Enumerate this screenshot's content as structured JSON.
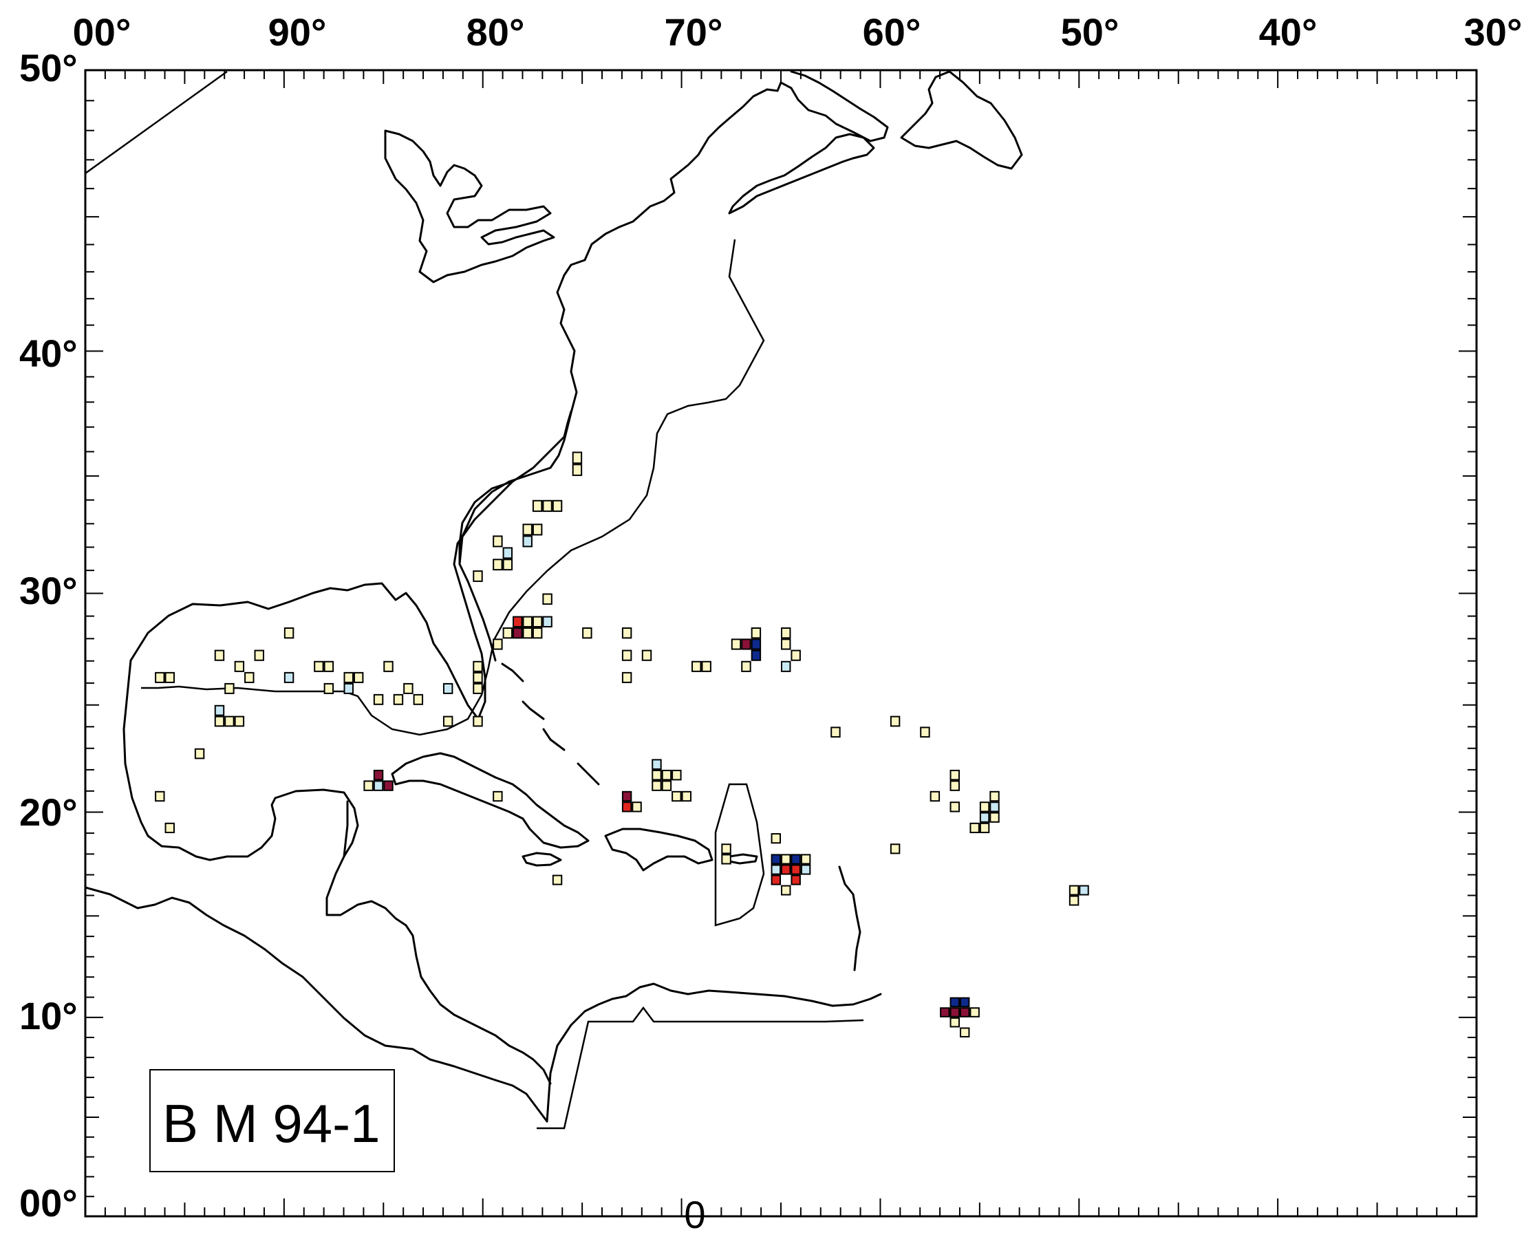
{
  "map": {
    "legend_label": "B M 94-1",
    "zero_marker": "0",
    "lon_labels": [
      "00°",
      "90°",
      "80°",
      "70°",
      "60°",
      "50°",
      "40°",
      "30°"
    ],
    "lat_labels": [
      "50°",
      "40°",
      "30°",
      "20°",
      "10°",
      "00°"
    ],
    "extent": {
      "lon_min": -100,
      "lon_max": -30,
      "lat_min": 0,
      "lat_max": 50
    },
    "colors": {
      "pale_yellow": "#fbf6c3",
      "light_blue": "#c8e8f4",
      "red": "#e0251f",
      "maroon": "#8a1238",
      "navy": "#0d2a8c"
    },
    "cells": [
      {
        "lon": -75.5,
        "lat": 35.5,
        "c": "pale_yellow"
      },
      {
        "lon": -75.5,
        "lat": 35.0,
        "c": "pale_yellow"
      },
      {
        "lon": -77.5,
        "lat": 33.5,
        "c": "pale_yellow"
      },
      {
        "lon": -77.0,
        "lat": 33.5,
        "c": "pale_yellow"
      },
      {
        "lon": -76.5,
        "lat": 33.5,
        "c": "pale_yellow"
      },
      {
        "lon": -78.0,
        "lat": 32.5,
        "c": "pale_yellow"
      },
      {
        "lon": -77.5,
        "lat": 32.5,
        "c": "pale_yellow"
      },
      {
        "lon": -78.0,
        "lat": 32.0,
        "c": "light_blue"
      },
      {
        "lon": -79.5,
        "lat": 32.0,
        "c": "pale_yellow"
      },
      {
        "lon": -79.0,
        "lat": 31.5,
        "c": "light_blue"
      },
      {
        "lon": -79.5,
        "lat": 31.0,
        "c": "pale_yellow"
      },
      {
        "lon": -79.0,
        "lat": 31.0,
        "c": "pale_yellow"
      },
      {
        "lon": -80.5,
        "lat": 30.5,
        "c": "pale_yellow"
      },
      {
        "lon": -77.0,
        "lat": 29.5,
        "c": "pale_yellow"
      },
      {
        "lon": -78.5,
        "lat": 28.5,
        "c": "red"
      },
      {
        "lon": -78.0,
        "lat": 28.5,
        "c": "pale_yellow"
      },
      {
        "lon": -77.5,
        "lat": 28.5,
        "c": "pale_yellow"
      },
      {
        "lon": -77.0,
        "lat": 28.5,
        "c": "light_blue"
      },
      {
        "lon": -78.5,
        "lat": 28.0,
        "c": "maroon"
      },
      {
        "lon": -78.0,
        "lat": 28.0,
        "c": "pale_yellow"
      },
      {
        "lon": -77.5,
        "lat": 28.0,
        "c": "pale_yellow"
      },
      {
        "lon": -79.0,
        "lat": 28.0,
        "c": "pale_yellow"
      },
      {
        "lon": -79.5,
        "lat": 27.5,
        "c": "pale_yellow"
      },
      {
        "lon": -75.0,
        "lat": 28.0,
        "c": "pale_yellow"
      },
      {
        "lon": -73.0,
        "lat": 28.0,
        "c": "pale_yellow"
      },
      {
        "lon": -73.0,
        "lat": 27.0,
        "c": "pale_yellow"
      },
      {
        "lon": -72.0,
        "lat": 27.0,
        "c": "pale_yellow"
      },
      {
        "lon": -73.0,
        "lat": 26.0,
        "c": "pale_yellow"
      },
      {
        "lon": -69.5,
        "lat": 26.5,
        "c": "pale_yellow"
      },
      {
        "lon": -69.0,
        "lat": 26.5,
        "c": "pale_yellow"
      },
      {
        "lon": -80.5,
        "lat": 26.5,
        "c": "pale_yellow"
      },
      {
        "lon": -80.5,
        "lat": 26.0,
        "c": "pale_yellow"
      },
      {
        "lon": -80.5,
        "lat": 25.5,
        "c": "pale_yellow"
      },
      {
        "lon": -80.5,
        "lat": 24.0,
        "c": "pale_yellow"
      },
      {
        "lon": -82.0,
        "lat": 24.0,
        "c": "pale_yellow"
      },
      {
        "lon": -66.5,
        "lat": 28.0,
        "c": "pale_yellow"
      },
      {
        "lon": -66.5,
        "lat": 27.5,
        "c": "navy"
      },
      {
        "lon": -67.0,
        "lat": 27.5,
        "c": "maroon"
      },
      {
        "lon": -67.5,
        "lat": 27.5,
        "c": "pale_yellow"
      },
      {
        "lon": -66.5,
        "lat": 27.0,
        "c": "navy"
      },
      {
        "lon": -67.0,
        "lat": 26.5,
        "c": "pale_yellow"
      },
      {
        "lon": -65.0,
        "lat": 28.0,
        "c": "pale_yellow"
      },
      {
        "lon": -65.0,
        "lat": 27.5,
        "c": "pale_yellow"
      },
      {
        "lon": -64.5,
        "lat": 27.0,
        "c": "pale_yellow"
      },
      {
        "lon": -65.0,
        "lat": 26.5,
        "c": "light_blue"
      },
      {
        "lon": -96.5,
        "lat": 26.0,
        "c": "pale_yellow"
      },
      {
        "lon": -96.0,
        "lat": 26.0,
        "c": "pale_yellow"
      },
      {
        "lon": -93.5,
        "lat": 27.0,
        "c": "pale_yellow"
      },
      {
        "lon": -92.5,
        "lat": 26.5,
        "c": "pale_yellow"
      },
      {
        "lon": -92.0,
        "lat": 26.0,
        "c": "pale_yellow"
      },
      {
        "lon": -91.5,
        "lat": 27.0,
        "c": "pale_yellow"
      },
      {
        "lon": -93.0,
        "lat": 25.5,
        "c": "pale_yellow"
      },
      {
        "lon": -90.0,
        "lat": 28.0,
        "c": "pale_yellow"
      },
      {
        "lon": -90.0,
        "lat": 26.0,
        "c": "light_blue"
      },
      {
        "lon": -88.5,
        "lat": 26.5,
        "c": "pale_yellow"
      },
      {
        "lon": -88.0,
        "lat": 26.5,
        "c": "pale_yellow"
      },
      {
        "lon": -88.0,
        "lat": 25.5,
        "c": "pale_yellow"
      },
      {
        "lon": -87.0,
        "lat": 26.0,
        "c": "pale_yellow"
      },
      {
        "lon": -86.5,
        "lat": 26.0,
        "c": "pale_yellow"
      },
      {
        "lon": -87.0,
        "lat": 25.5,
        "c": "light_blue"
      },
      {
        "lon": -85.0,
        "lat": 26.5,
        "c": "pale_yellow"
      },
      {
        "lon": -84.0,
        "lat": 25.5,
        "c": "pale_yellow"
      },
      {
        "lon": -84.5,
        "lat": 25.0,
        "c": "pale_yellow"
      },
      {
        "lon": -83.5,
        "lat": 25.0,
        "c": "pale_yellow"
      },
      {
        "lon": -85.5,
        "lat": 25.0,
        "c": "pale_yellow"
      },
      {
        "lon": -82.0,
        "lat": 25.5,
        "c": "light_blue"
      },
      {
        "lon": -93.5,
        "lat": 24.5,
        "c": "light_blue"
      },
      {
        "lon": -93.5,
        "lat": 24.0,
        "c": "pale_yellow"
      },
      {
        "lon": -93.0,
        "lat": 24.0,
        "c": "pale_yellow"
      },
      {
        "lon": -92.5,
        "lat": 24.0,
        "c": "pale_yellow"
      },
      {
        "lon": -94.5,
        "lat": 22.5,
        "c": "pale_yellow"
      },
      {
        "lon": -96.5,
        "lat": 20.5,
        "c": "pale_yellow"
      },
      {
        "lon": -96.0,
        "lat": 19.0,
        "c": "pale_yellow"
      },
      {
        "lon": -85.5,
        "lat": 21.5,
        "c": "maroon"
      },
      {
        "lon": -85.5,
        "lat": 21.0,
        "c": "light_blue"
      },
      {
        "lon": -85.0,
        "lat": 21.0,
        "c": "maroon"
      },
      {
        "lon": -86.0,
        "lat": 21.0,
        "c": "pale_yellow"
      },
      {
        "lon": -79.5,
        "lat": 20.5,
        "c": "pale_yellow"
      },
      {
        "lon": -76.5,
        "lat": 16.5,
        "c": "pale_yellow"
      },
      {
        "lon": -73.0,
        "lat": 20.5,
        "c": "maroon"
      },
      {
        "lon": -73.0,
        "lat": 20.0,
        "c": "red"
      },
      {
        "lon": -72.5,
        "lat": 20.0,
        "c": "pale_yellow"
      },
      {
        "lon": -71.5,
        "lat": 22.0,
        "c": "light_blue"
      },
      {
        "lon": -71.5,
        "lat": 21.5,
        "c": "pale_yellow"
      },
      {
        "lon": -71.0,
        "lat": 21.5,
        "c": "pale_yellow"
      },
      {
        "lon": -70.5,
        "lat": 21.5,
        "c": "pale_yellow"
      },
      {
        "lon": -71.5,
        "lat": 21.0,
        "c": "pale_yellow"
      },
      {
        "lon": -71.0,
        "lat": 21.0,
        "c": "pale_yellow"
      },
      {
        "lon": -70.5,
        "lat": 20.5,
        "c": "pale_yellow"
      },
      {
        "lon": -70.0,
        "lat": 20.5,
        "c": "pale_yellow"
      },
      {
        "lon": -68.0,
        "lat": 18.0,
        "c": "pale_yellow"
      },
      {
        "lon": -68.0,
        "lat": 17.5,
        "c": "pale_yellow"
      },
      {
        "lon": -65.5,
        "lat": 18.5,
        "c": "pale_yellow"
      },
      {
        "lon": -65.5,
        "lat": 17.5,
        "c": "navy"
      },
      {
        "lon": -65.0,
        "lat": 17.5,
        "c": "pale_yellow"
      },
      {
        "lon": -64.5,
        "lat": 17.5,
        "c": "navy"
      },
      {
        "lon": -64.0,
        "lat": 17.5,
        "c": "pale_yellow"
      },
      {
        "lon": -65.5,
        "lat": 17.0,
        "c": "light_blue"
      },
      {
        "lon": -65.0,
        "lat": 17.0,
        "c": "red"
      },
      {
        "lon": -64.5,
        "lat": 17.0,
        "c": "red"
      },
      {
        "lon": -64.0,
        "lat": 17.0,
        "c": "light_blue"
      },
      {
        "lon": -65.5,
        "lat": 16.5,
        "c": "red"
      },
      {
        "lon": -64.5,
        "lat": 16.5,
        "c": "red"
      },
      {
        "lon": -65.0,
        "lat": 16.0,
        "c": "pale_yellow"
      },
      {
        "lon": -62.5,
        "lat": 23.5,
        "c": "pale_yellow"
      },
      {
        "lon": -59.5,
        "lat": 24.0,
        "c": "pale_yellow"
      },
      {
        "lon": -58.0,
        "lat": 23.5,
        "c": "pale_yellow"
      },
      {
        "lon": -59.5,
        "lat": 18.0,
        "c": "pale_yellow"
      },
      {
        "lon": -56.5,
        "lat": 21.5,
        "c": "pale_yellow"
      },
      {
        "lon": -56.5,
        "lat": 21.0,
        "c": "pale_yellow"
      },
      {
        "lon": -57.5,
        "lat": 20.5,
        "c": "pale_yellow"
      },
      {
        "lon": -56.5,
        "lat": 20.0,
        "c": "pale_yellow"
      },
      {
        "lon": -55.0,
        "lat": 20.0,
        "c": "pale_yellow"
      },
      {
        "lon": -54.5,
        "lat": 20.5,
        "c": "pale_yellow"
      },
      {
        "lon": -54.5,
        "lat": 20.0,
        "c": "light_blue"
      },
      {
        "lon": -54.5,
        "lat": 19.5,
        "c": "pale_yellow"
      },
      {
        "lon": -55.0,
        "lat": 19.5,
        "c": "light_blue"
      },
      {
        "lon": -55.0,
        "lat": 19.0,
        "c": "pale_yellow"
      },
      {
        "lon": -55.5,
        "lat": 19.0,
        "c": "pale_yellow"
      },
      {
        "lon": -50.5,
        "lat": 16.0,
        "c": "pale_yellow"
      },
      {
        "lon": -50.0,
        "lat": 16.0,
        "c": "light_blue"
      },
      {
        "lon": -50.5,
        "lat": 15.5,
        "c": "pale_yellow"
      },
      {
        "lon": -56.5,
        "lat": 10.5,
        "c": "navy"
      },
      {
        "lon": -56.0,
        "lat": 10.5,
        "c": "navy"
      },
      {
        "lon": -57.0,
        "lat": 10.0,
        "c": "maroon"
      },
      {
        "lon": -56.5,
        "lat": 10.0,
        "c": "maroon"
      },
      {
        "lon": -56.0,
        "lat": 10.0,
        "c": "maroon"
      },
      {
        "lon": -55.5,
        "lat": 10.0,
        "c": "pale_yellow"
      },
      {
        "lon": -56.5,
        "lat": 9.5,
        "c": "pale_yellow"
      },
      {
        "lon": -56.0,
        "lat": 9.0,
        "c": "pale_yellow"
      }
    ]
  }
}
